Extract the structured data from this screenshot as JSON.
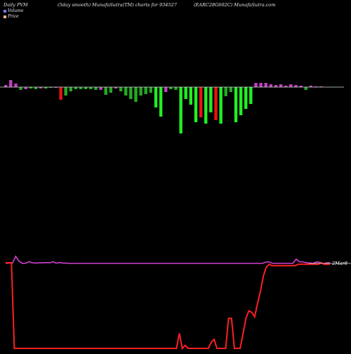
{
  "header": {
    "left": "Daily PVM",
    "mid": "(5day smooth) MunafaSutra(TM) charts for 934527",
    "right": "(EARC28G602C) MunafaSutra.com"
  },
  "legend": [
    {
      "label": "Volume",
      "color": "#7a7af0"
    },
    {
      "label": "Price",
      "color": "#f3b38a"
    }
  ],
  "colors": {
    "up": "#22ee22",
    "down": "#ee1111",
    "pvm_up": "#c040c0",
    "pvm_down": "#22aa22",
    "pvm_line": "#d040d0",
    "price_line": "#ff2020",
    "axis": "#dddddd"
  },
  "chart_data": [
    {
      "type": "bar",
      "name": "price-volume-bars",
      "bars": [
        {
          "v": 3,
          "c": "pvm_up"
        },
        {
          "v": 10,
          "c": "pvm_up"
        },
        {
          "v": 5,
          "c": "pvm_up"
        },
        {
          "v": -4,
          "c": "pvm_down"
        },
        {
          "v": -3,
          "c": "pvm_up"
        },
        {
          "v": -2,
          "c": "pvm_down"
        },
        {
          "v": -3,
          "c": "pvm_down"
        },
        {
          "v": -2,
          "c": "pvm_up"
        },
        {
          "v": -2,
          "c": "pvm_down"
        },
        {
          "v": -1,
          "c": "pvm_down"
        },
        {
          "v": -1,
          "c": "pvm_up"
        },
        {
          "v": -18,
          "c": "down"
        },
        {
          "v": -12,
          "c": "pvm_down"
        },
        {
          "v": -6,
          "c": "pvm_down"
        },
        {
          "v": -3,
          "c": "pvm_down"
        },
        {
          "v": -3,
          "c": "pvm_down"
        },
        {
          "v": -3,
          "c": "pvm_down"
        },
        {
          "v": -3,
          "c": "pvm_down"
        },
        {
          "v": -4,
          "c": "pvm_down"
        },
        {
          "v": -4,
          "c": "pvm_up"
        },
        {
          "v": -11,
          "c": "pvm_down"
        },
        {
          "v": -8,
          "c": "pvm_down"
        },
        {
          "v": -2,
          "c": "pvm_up"
        },
        {
          "v": -6,
          "c": "pvm_down"
        },
        {
          "v": -12,
          "c": "pvm_down"
        },
        {
          "v": -17,
          "c": "pvm_down"
        },
        {
          "v": -21,
          "c": "pvm_down"
        },
        {
          "v": -12,
          "c": "pvm_down"
        },
        {
          "v": -10,
          "c": "pvm_down"
        },
        {
          "v": -8,
          "c": "pvm_down"
        },
        {
          "v": -29,
          "c": "up"
        },
        {
          "v": -42,
          "c": "up"
        },
        {
          "v": -7,
          "c": "pvm_up"
        },
        {
          "v": -3,
          "c": "pvm_down"
        },
        {
          "v": -4,
          "c": "pvm_down"
        },
        {
          "v": -66,
          "c": "up"
        },
        {
          "v": -17,
          "c": "up"
        },
        {
          "v": -25,
          "c": "up"
        },
        {
          "v": -50,
          "c": "up"
        },
        {
          "v": -43,
          "c": "down"
        },
        {
          "v": -52,
          "c": "up"
        },
        {
          "v": -36,
          "c": "up"
        },
        {
          "v": -47,
          "c": "down"
        },
        {
          "v": -52,
          "c": "up"
        },
        {
          "v": -13,
          "c": "pvm_down"
        },
        {
          "v": -7,
          "c": "pvm_down"
        },
        {
          "v": -50,
          "c": "up"
        },
        {
          "v": -40,
          "c": "up"
        },
        {
          "v": -31,
          "c": "up"
        },
        {
          "v": -24,
          "c": "up"
        },
        {
          "v": 6,
          "c": "pvm_up"
        },
        {
          "v": 6,
          "c": "pvm_up"
        },
        {
          "v": 6,
          "c": "pvm_up"
        },
        {
          "v": 4,
          "c": "pvm_up"
        },
        {
          "v": 3,
          "c": "pvm_up"
        },
        {
          "v": 4,
          "c": "pvm_up"
        },
        {
          "v": 2,
          "c": "pvm_up"
        },
        {
          "v": 4,
          "c": "pvm_up"
        },
        {
          "v": 3,
          "c": "pvm_up"
        },
        {
          "v": 2,
          "c": "pvm_up"
        },
        {
          "v": -4,
          "c": "pvm_down"
        },
        {
          "v": 2,
          "c": "pvm_up"
        },
        {
          "v": 1,
          "c": "pvm_up"
        },
        {
          "v": 1,
          "c": "pvm_up"
        }
      ]
    },
    {
      "type": "line",
      "name": "volume-line",
      "values": [
        55,
        56,
        56,
        80,
        62,
        55,
        56,
        61,
        57,
        56,
        57,
        57,
        58,
        57,
        61,
        56,
        58,
        56,
        56,
        55,
        55,
        55,
        55,
        55,
        55,
        55,
        55,
        55,
        55,
        55,
        55,
        55,
        55,
        55,
        55,
        55,
        55,
        55,
        55,
        55,
        55,
        55,
        55,
        55,
        55,
        55,
        55,
        55,
        55,
        55,
        55,
        55,
        55,
        55,
        55,
        55,
        55,
        55,
        55,
        55,
        55,
        55,
        55,
        55,
        55,
        55,
        55,
        55,
        55,
        55,
        55,
        55,
        55,
        55,
        55,
        55,
        55,
        60,
        60,
        55,
        55,
        55,
        55,
        55,
        55,
        55,
        70,
        61,
        60,
        58,
        56,
        55,
        60,
        59,
        53,
        57,
        57
      ]
    },
    {
      "type": "line",
      "name": "price-line",
      "values": [
        57,
        57,
        57,
        0,
        0,
        0,
        0,
        0,
        0,
        0,
        0,
        0,
        0,
        0,
        0,
        0,
        0,
        0,
        0,
        0,
        0,
        0,
        0,
        0,
        0,
        0,
        0,
        0,
        0,
        0,
        0,
        0,
        0,
        0,
        0,
        0,
        0,
        0,
        0,
        0,
        0,
        0,
        0,
        0,
        0,
        0,
        0,
        0,
        0,
        0,
        0,
        0,
        0,
        0,
        0,
        0,
        0,
        0,
        0,
        0,
        10,
        0,
        2,
        0,
        0,
        0,
        0,
        0,
        0,
        0,
        0,
        4,
        6,
        0,
        0,
        0,
        0,
        20,
        20,
        0,
        0,
        0,
        10,
        20,
        25,
        24,
        21,
        30,
        38,
        48,
        54,
        56,
        55,
        55,
        55,
        55,
        55,
        55,
        55,
        55,
        55,
        56,
        56,
        56,
        56,
        56,
        56,
        56,
        56,
        57,
        56,
        56,
        56
      ]
    }
  ],
  "price_label": "2Mar8"
}
